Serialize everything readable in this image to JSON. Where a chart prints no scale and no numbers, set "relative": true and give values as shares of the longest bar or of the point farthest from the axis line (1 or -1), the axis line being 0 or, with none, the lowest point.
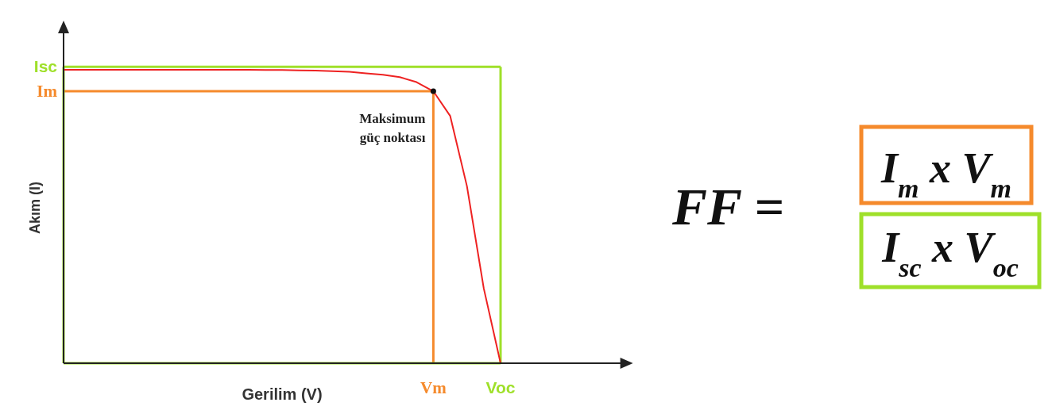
{
  "chart_data": {
    "type": "line",
    "xlabel": "Gerilim (V)",
    "ylabel": "Akım (I)",
    "relative": true,
    "categories": [
      null,
      null,
      null,
      null,
      null,
      null,
      null,
      null,
      null,
      null,
      null,
      null,
      null,
      null,
      null,
      null,
      null,
      null,
      null,
      null,
      null,
      null,
      "Vm",
      null,
      null,
      null,
      "Voc",
      null,
      null,
      null,
      null
    ],
    "series": [
      {
        "color": "#ee2222",
        "values": [
          1,
          1,
          1,
          1,
          1,
          1,
          1,
          1,
          1,
          1,
          1,
          1,
          0.999,
          0.999,
          0.998,
          0.997,
          0.995,
          0.993,
          0.988,
          0.983,
          0.975,
          0.958,
          0.927,
          0.843,
          0.603,
          0.255,
          0,
          null,
          null,
          null,
          null
        ]
      }
    ],
    "ref_lines": [
      {
        "axis": "y",
        "value": 1.01,
        "label": "Isc",
        "color": "#9fe02a"
      },
      {
        "axis": "y",
        "value": 0.927,
        "label": "Im",
        "color": "#f58a2c"
      }
    ],
    "annotations": [
      {
        "text": "Maksimum güç noktası",
        "x": "Vm",
        "y": 0.927
      },
      "FF =",
      "I$_{m}$ x V$_{m}$",
      "I$_{sc}$ x V$_{oc}$"
    ],
    "marker": "none",
    "line_style": "solid"
  }
}
